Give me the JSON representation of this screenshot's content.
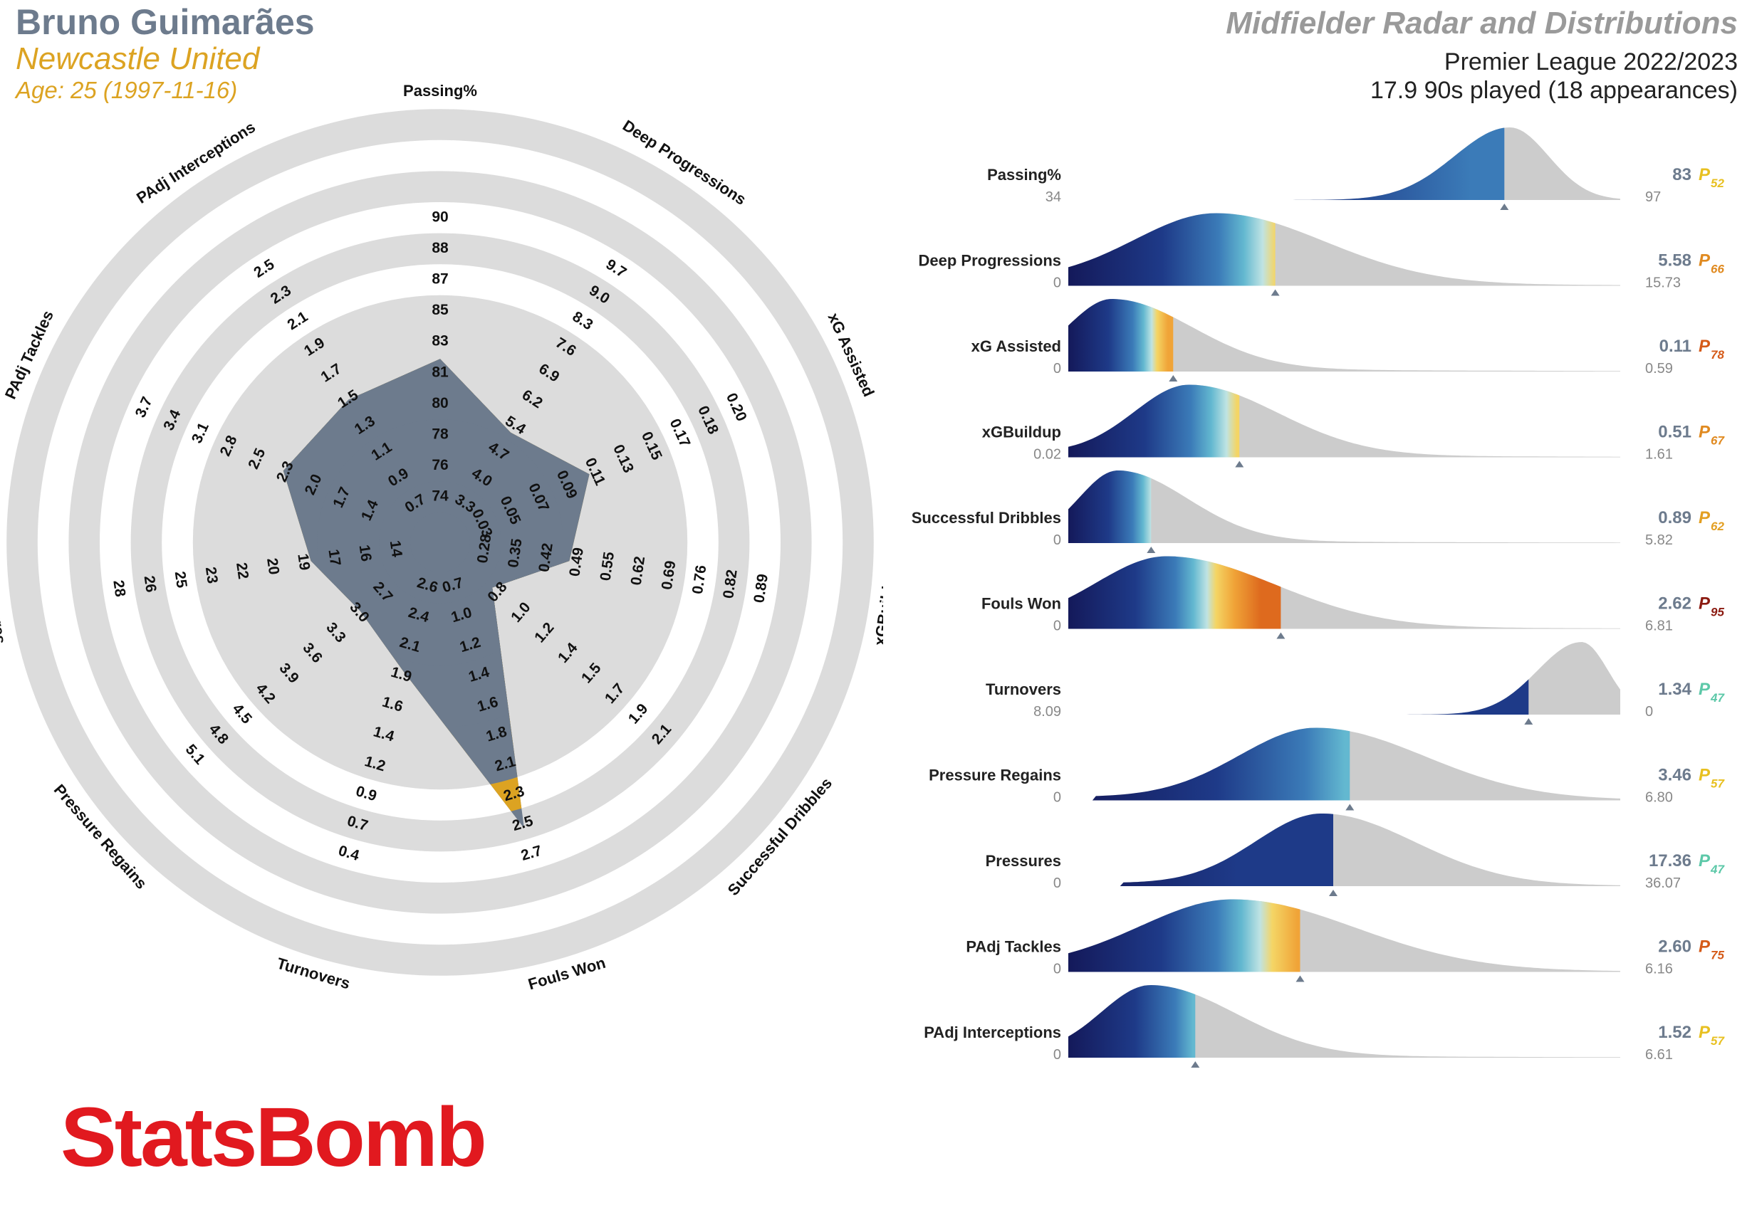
{
  "header": {
    "player_name": "Bruno Guimarães",
    "team": "Newcastle United",
    "age_line": "Age: 25 (1997-11-16)",
    "chart_title": "Midfielder Radar and Distributions",
    "competition": "Premier League 2022/2023",
    "minutes": "17.9 90s played (18 appearances)"
  },
  "logo": {
    "text": "StatsBomb"
  },
  "colors": {
    "player": "#6d7b8d",
    "accent": "#dca322",
    "ring": "#dcdcdc",
    "dist_grey": "#cccccc",
    "brand": "#e1191f"
  },
  "chart_data": [
    {
      "type": "radar",
      "axes": [
        {
          "label": "Passing%",
          "ticks": [
            "74",
            "76",
            "78",
            "80",
            "81",
            "83",
            "85",
            "87",
            "88",
            "90"
          ],
          "value": 83
        },
        {
          "label": "Deep Progressions",
          "ticks": [
            "3.3",
            "4.0",
            "4.7",
            "5.4",
            "6.2",
            "6.9",
            "7.6",
            "8.3",
            "9.0",
            "9.7"
          ],
          "value": 5.58
        },
        {
          "label": "xG Assisted",
          "ticks": [
            "0.03",
            "0.05",
            "0.07",
            "0.09",
            "0.11",
            "0.13",
            "0.15",
            "0.17",
            "0.18",
            "0.20"
          ],
          "value": 0.11
        },
        {
          "label": "xGBuildup",
          "ticks": [
            "0.28",
            "0.35",
            "0.42",
            "0.49",
            "0.55",
            "0.62",
            "0.69",
            "0.76",
            "0.82",
            "0.89"
          ],
          "value": 0.51
        },
        {
          "label": "Successful Dribbles",
          "ticks": [
            "0.8",
            "1.0",
            "1.2",
            "1.4",
            "1.5",
            "1.7",
            "1.9",
            "2.1"
          ],
          "value": 0.89
        },
        {
          "label": "Fouls Won",
          "ticks": [
            "0.7",
            "1.0",
            "1.2",
            "1.4",
            "1.6",
            "1.8",
            "2.1",
            "2.3",
            "2.5",
            "2.7"
          ],
          "value": 2.62
        },
        {
          "label": "Turnovers",
          "ticks": [
            "2.6",
            "2.4",
            "2.1",
            "1.9",
            "1.6",
            "1.4",
            "1.2",
            "0.9",
            "0.7",
            "0.4"
          ],
          "value": 1.34
        },
        {
          "label": "Pressure Regains",
          "ticks": [
            "2.7",
            "3.0",
            "3.3",
            "3.6",
            "3.9",
            "4.2",
            "4.5",
            "4.8",
            "5.1"
          ],
          "value": 3.46
        },
        {
          "label": "Pressures",
          "ticks": [
            "14",
            "16",
            "17",
            "19",
            "20",
            "22",
            "23",
            "25",
            "26",
            "28"
          ],
          "value": 17.36
        },
        {
          "label": "PAdj Tackles",
          "ticks": [
            "1.4",
            "1.7",
            "2.0",
            "2.3",
            "2.5",
            "2.8",
            "3.1",
            "3.4",
            "3.7"
          ],
          "value": 2.6
        },
        {
          "label": "PAdj Interceptions",
          "ticks": [
            "0.7",
            "0.9",
            "1.1",
            "1.3",
            "1.5",
            "1.7",
            "1.9",
            "2.1",
            "2.3",
            "2.5"
          ],
          "value": 1.52
        }
      ],
      "player_levels": [
        0.55,
        0.36,
        0.48,
        0.36,
        0.14,
        0.96,
        0.37,
        0.27,
        0.36,
        0.51,
        0.5
      ]
    },
    {
      "type": "area",
      "subtype": "distributions",
      "rows": [
        {
          "label": "Passing%",
          "min": "34",
          "max": "97",
          "value": "83",
          "pct": "52",
          "pctColor": "#e8c020",
          "marker": 0.79,
          "peak": 0.8,
          "w": 0.1,
          "skew": 0.7,
          "tail": 0.0,
          "start": 0.3
        },
        {
          "label": "Deep Progressions",
          "min": "0",
          "max": "15.73",
          "value": "5.58",
          "pct": "66",
          "pctColor": "#e08a20",
          "marker": 0.375,
          "peak": 0.27,
          "w": 0.15,
          "skew": 1.3,
          "tail": 0.04,
          "start": 0.0
        },
        {
          "label": "xG Assisted",
          "min": "0",
          "max": "0.59",
          "value": "0.11",
          "pct": "78",
          "pctColor": "#d55a18",
          "marker": 0.19,
          "peak": 0.08,
          "w": 0.08,
          "skew": 1.8,
          "tail": 0.05,
          "start": 0.0
        },
        {
          "label": "xGBuildup",
          "min": "0.02",
          "max": "1.61",
          "value": "0.51",
          "pct": "67",
          "pctColor": "#e08a20",
          "marker": 0.31,
          "peak": 0.22,
          "w": 0.1,
          "skew": 1.6,
          "tail": 0.04,
          "start": 0.0
        },
        {
          "label": "Successful Dribbles",
          "min": "0",
          "max": "5.82",
          "value": "0.89",
          "pct": "62",
          "pctColor": "#e39f22",
          "marker": 0.15,
          "peak": 0.09,
          "w": 0.07,
          "skew": 1.8,
          "tail": 0.04,
          "start": 0.0
        },
        {
          "label": "Fouls Won",
          "min": "0",
          "max": "6.81",
          "value": "2.62",
          "pct": "95",
          "pctColor": "#8b1a10",
          "marker": 0.385,
          "peak": 0.18,
          "w": 0.13,
          "skew": 1.5,
          "tail": 0.04,
          "start": 0.0
        },
        {
          "label": "Turnovers",
          "min": "8.09",
          "max": "0",
          "value": "1.34",
          "pct": "47",
          "pctColor": "#5cc8a8",
          "marker": 0.834,
          "peak": 0.93,
          "w": 0.08,
          "skew": 0.6,
          "tail": 0.0,
          "start": 0.4
        },
        {
          "label": "Pressure Regains",
          "min": "0",
          "max": "6.80",
          "value": "3.46",
          "pct": "57",
          "pctColor": "#e8c020",
          "marker": 0.51,
          "peak": 0.45,
          "w": 0.14,
          "skew": 1.4,
          "tail": 0.02,
          "start": 0.05
        },
        {
          "label": "Pressures",
          "min": "0",
          "max": "36.07",
          "value": "17.36",
          "pct": "47",
          "pctColor": "#5cc8a8",
          "marker": 0.48,
          "peak": 0.46,
          "w": 0.12,
          "skew": 1.4,
          "tail": 0.02,
          "start": 0.1
        },
        {
          "label": "PAdj Tackles",
          "min": "0",
          "max": "6.16",
          "value": "2.60",
          "pct": "75",
          "pctColor": "#d55a18",
          "marker": 0.42,
          "peak": 0.3,
          "w": 0.17,
          "skew": 1.3,
          "tail": 0.03,
          "start": 0.0
        },
        {
          "label": "PAdj Interceptions",
          "min": "0",
          "max": "6.61",
          "value": "1.52",
          "pct": "57",
          "pctColor": "#e8c020",
          "marker": 0.23,
          "peak": 0.15,
          "w": 0.09,
          "skew": 1.7,
          "tail": 0.04,
          "start": 0.0
        }
      ]
    }
  ]
}
